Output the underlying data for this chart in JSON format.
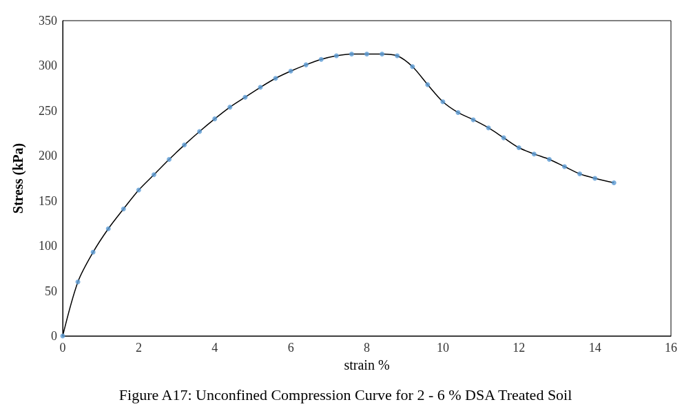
{
  "chart_data": {
    "type": "line",
    "xlabel": "strain %",
    "ylabel": "Stress (kPa)",
    "annotations": [
      "Figure A17: Unconfined Compression Curve for 2 - 6 % DSA Treated Soil"
    ],
    "x": [
      0,
      0.4,
      0.8,
      1.2,
      1.6,
      2,
      2.4,
      2.8,
      3.2,
      3.6,
      4,
      4.4,
      4.8,
      5.2,
      5.6,
      6,
      6.4,
      6.8,
      7.2,
      7.6,
      8,
      8.4,
      8.8,
      9.2,
      9.6,
      10,
      10.4,
      10.8,
      11.2,
      11.6,
      12,
      12.4,
      12.8,
      13.2,
      13.6,
      14,
      14.5
    ],
    "series": [
      {
        "type": "scatter",
        "color": "#5b9bd5",
        "marker": "circle",
        "values": [
          0,
          60,
          93,
          119,
          141,
          162,
          179,
          196,
          212,
          227,
          241,
          254,
          265,
          276,
          286,
          294,
          301,
          307,
          311,
          313,
          313,
          313,
          311,
          299,
          279,
          260,
          248,
          240,
          231,
          220,
          209,
          202,
          196,
          188,
          180,
          175,
          170
        ]
      },
      {
        "color": "#000000",
        "marker": "none",
        "values": [
          0,
          60,
          93,
          119,
          141,
          162,
          179,
          196,
          212,
          227,
          241,
          254,
          265,
          276,
          286,
          294,
          301,
          307,
          311,
          313,
          313,
          313,
          311,
          299,
          279,
          260,
          248,
          240,
          231,
          220,
          209,
          202,
          196,
          188,
          180,
          175,
          170
        ]
      }
    ],
    "xlim": [
      0,
      16
    ],
    "xticks": [
      0,
      2,
      4,
      6,
      8,
      10,
      12,
      14,
      16
    ],
    "ylim": [
      0,
      350
    ],
    "yticks": [
      0,
      50,
      100,
      150,
      200,
      250,
      300,
      350
    ],
    "grid": false
  }
}
